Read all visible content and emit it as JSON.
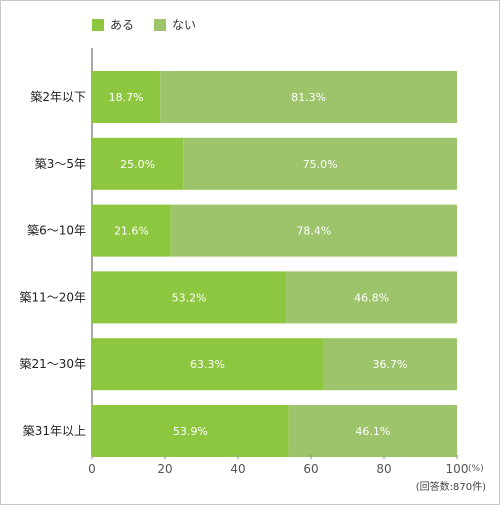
{
  "chart_data": {
    "type": "bar",
    "orientation": "horizontal",
    "stacked": true,
    "categories": [
      "築2年以下",
      "築3～5年",
      "築6～10年",
      "築11～20年",
      "築21～30年",
      "築31年以上"
    ],
    "series": [
      {
        "name": "ある",
        "color": "#8dc63f",
        "values": [
          18.7,
          25.0,
          21.6,
          53.2,
          63.3,
          53.9
        ],
        "labels": [
          "18.7%",
          "25.0%",
          "21.6%",
          "53.2%",
          "63.3%",
          "53.9%"
        ]
      },
      {
        "name": "ない",
        "color": "#9dc46b",
        "values": [
          81.3,
          75.0,
          78.4,
          46.8,
          36.7,
          46.1
        ],
        "labels": [
          "81.3%",
          "75.0%",
          "78.4%",
          "46.8%",
          "36.7%",
          "46.1%"
        ]
      }
    ],
    "xlim": [
      0,
      100
    ],
    "xticks": [
      "0",
      "20",
      "40",
      "60",
      "80",
      "100"
    ],
    "x_unit": "(%)",
    "grid": false,
    "legend_position": "top-left"
  },
  "note": "(回答数:870件)"
}
